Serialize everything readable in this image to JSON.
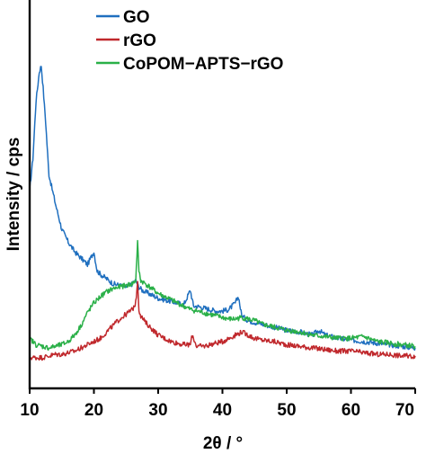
{
  "chart_data": {
    "type": "line",
    "title": "",
    "xlabel": "2θ / °",
    "ylabel": "Intensity / cps",
    "xlim": [
      10,
      70
    ],
    "ylim": [
      0,
      100
    ],
    "x_ticks": [
      "10",
      "20",
      "30",
      "40",
      "50",
      "60",
      "70"
    ],
    "y_ticks": [],
    "grid": false,
    "legend_position": "top-left",
    "series": [
      {
        "name": "GO",
        "color": "#1f6fbf",
        "x": [
          10,
          10.5,
          11,
          11.5,
          11.8,
          12.1,
          12.5,
          13,
          14,
          15,
          16,
          17,
          18,
          19,
          20,
          20.5,
          21,
          22,
          23,
          24,
          25,
          26,
          26.5,
          27,
          27.5,
          28,
          29,
          30,
          31,
          32,
          33,
          34,
          35,
          35.5,
          36,
          37,
          38,
          39,
          40,
          41,
          42,
          42.5,
          43,
          44,
          45,
          46,
          48,
          50,
          52,
          54,
          55,
          56,
          58,
          60,
          62,
          64,
          66,
          68,
          70
        ],
        "y": [
          56,
          66,
          84,
          93,
          95,
          88,
          77,
          61,
          52,
          44,
          40,
          37,
          35,
          33,
          37,
          31,
          30,
          28.5,
          27,
          26.5,
          26,
          27,
          28,
          26,
          25,
          24.5,
          23.5,
          22.5,
          22,
          21.5,
          21,
          20.5,
          25,
          20,
          20,
          19.5,
          19,
          18.5,
          18.5,
          19,
          21,
          23,
          17,
          15.5,
          15,
          14.5,
          13.5,
          12.5,
          12,
          11,
          12.5,
          11,
          10,
          9.5,
          9,
          8.5,
          8,
          7.5,
          7
        ]
      },
      {
        "name": "rGO",
        "color": "#c0282c",
        "x": [
          10,
          11,
          12,
          13,
          14,
          15,
          16,
          17,
          18,
          19,
          20,
          21,
          22,
          23,
          24,
          25,
          26,
          26.5,
          26.8,
          27,
          27.3,
          28,
          29,
          30,
          31,
          32,
          33,
          34,
          35,
          35.3,
          36,
          37,
          38,
          39,
          40,
          41,
          42,
          43,
          44,
          45,
          46,
          48,
          50,
          52,
          54,
          56,
          58,
          60,
          62,
          64,
          66,
          68,
          70
        ],
        "y": [
          4,
          4,
          4,
          4.5,
          5,
          5,
          5.5,
          6,
          7,
          8,
          9,
          10,
          12,
          14,
          16,
          17.5,
          19,
          21,
          28,
          19,
          17,
          15,
          13,
          11,
          10,
          9,
          8.5,
          8,
          8,
          11,
          7.5,
          7.5,
          8,
          8.5,
          9,
          10,
          11,
          12,
          11,
          10,
          9.5,
          9,
          8,
          7.5,
          7,
          6.5,
          6,
          6,
          5.5,
          5,
          5,
          4.5,
          4.5
        ]
      },
      {
        "name": "CoPOM−APTS−rGO",
        "color": "#2ab048",
        "x": [
          10,
          11,
          12,
          13,
          14,
          15,
          16,
          17,
          18,
          19,
          20,
          21,
          22,
          23,
          24,
          25,
          26,
          26.5,
          26.8,
          27,
          27.3,
          28,
          29,
          30,
          31,
          32,
          33,
          34,
          35,
          36,
          37,
          38,
          39,
          40,
          41,
          42,
          43,
          44,
          45,
          46,
          48,
          50,
          52,
          54,
          56,
          58,
          60,
          62,
          64,
          66,
          68,
          70
        ],
        "y": [
          10,
          8,
          7.5,
          7,
          7.5,
          8,
          9,
          11,
          14,
          18,
          21,
          23,
          24.5,
          25.5,
          26,
          26.5,
          27,
          28,
          40,
          31,
          28,
          27,
          25.5,
          24,
          23,
          22,
          21,
          20,
          19,
          18.5,
          18,
          17.5,
          17,
          16.5,
          16,
          16,
          16.5,
          16,
          15.5,
          14.5,
          13.5,
          12.5,
          12,
          11,
          10.5,
          10,
          10,
          10.5,
          9,
          8.5,
          8,
          7.5
        ]
      }
    ]
  }
}
